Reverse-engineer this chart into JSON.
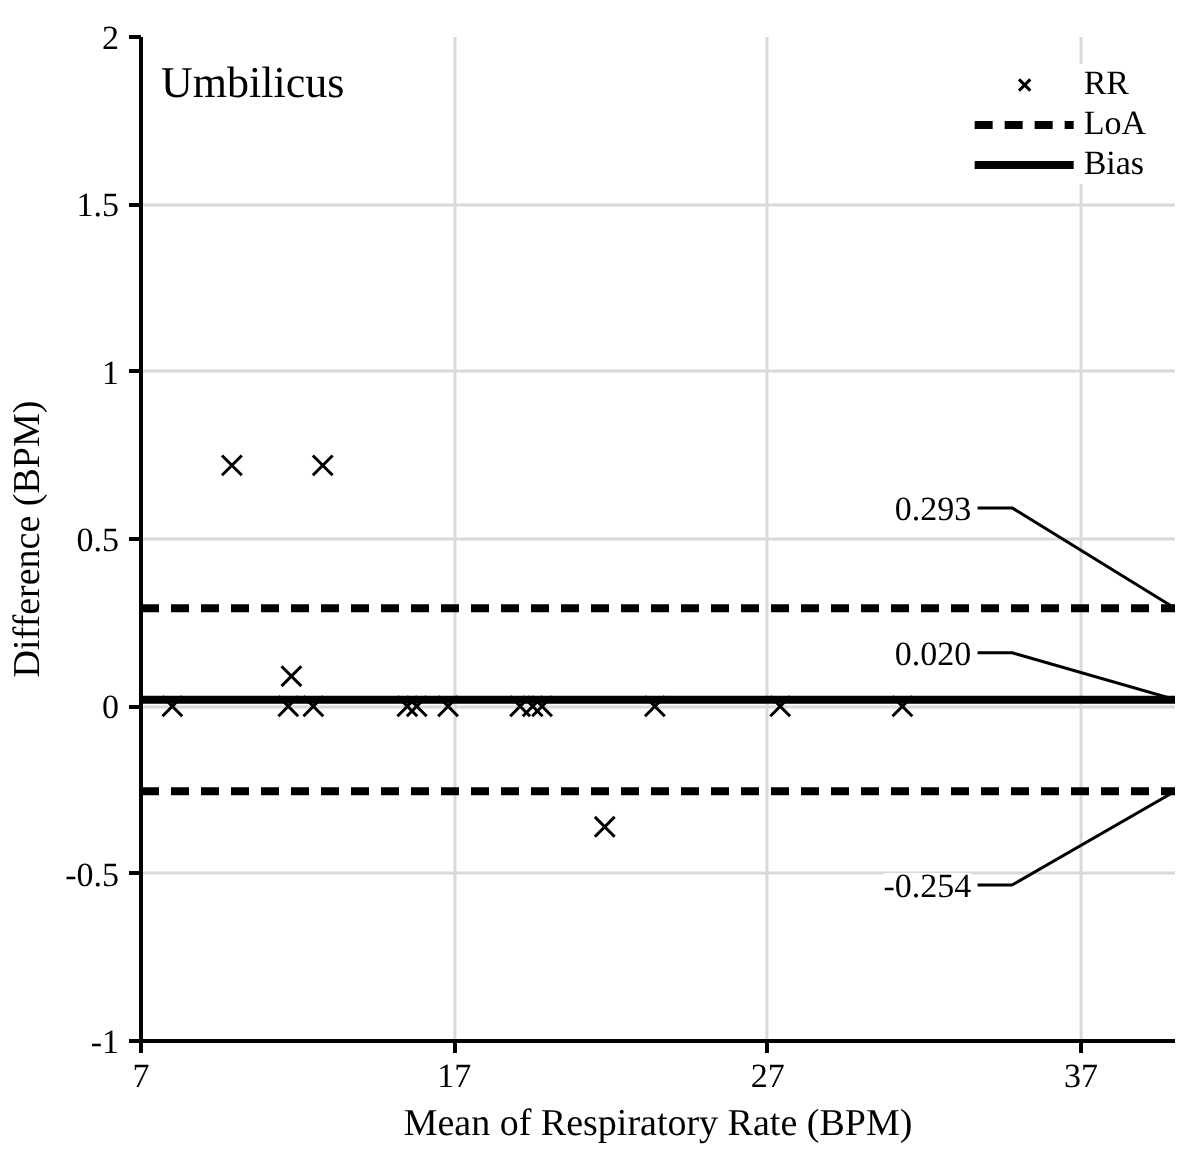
{
  "chart_data": {
    "type": "scatter",
    "title": "Umbilicus",
    "xlabel": "Mean of Respiratory Rate (BPM)",
    "ylabel": "Difference (BPM)",
    "xlim": [
      7,
      40
    ],
    "ylim": [
      -1,
      2
    ],
    "xticks": [
      7,
      17,
      27,
      37
    ],
    "yticks": [
      -1,
      -0.5,
      0,
      0.5,
      1,
      1.5,
      2
    ],
    "grid": true,
    "legend": "top right",
    "marker": "cross",
    "series": [
      {
        "name": "RR",
        "color": "#000000",
        "x": [
          8.0,
          9.9,
          11.7,
          11.8,
          12.5,
          12.8,
          15.5,
          15.8,
          16.8,
          19.1,
          19.5,
          19.8,
          21.8,
          23.4,
          27.4,
          31.3
        ],
        "values": [
          0,
          0.72,
          0,
          0.09,
          0,
          0.72,
          0,
          0,
          0,
          0,
          0,
          0,
          -0.36,
          0,
          0,
          0
        ]
      }
    ],
    "ref_lines": [
      {
        "axis": "y",
        "value": 0.293,
        "label": "LoA",
        "line_style": "dashed",
        "color": "#000000"
      },
      {
        "axis": "y",
        "value": 0.02,
        "label": "Bias",
        "line_style": "solid",
        "color": "#000000"
      },
      {
        "axis": "y",
        "value": -0.254,
        "line_style": "dashed",
        "color": "#000000"
      }
    ],
    "annotations": [
      {
        "text": "0.293",
        "y": 0.293
      },
      {
        "text": "0.020",
        "y": 0.02
      },
      {
        "text": "-0.254",
        "y": -0.254
      }
    ]
  }
}
